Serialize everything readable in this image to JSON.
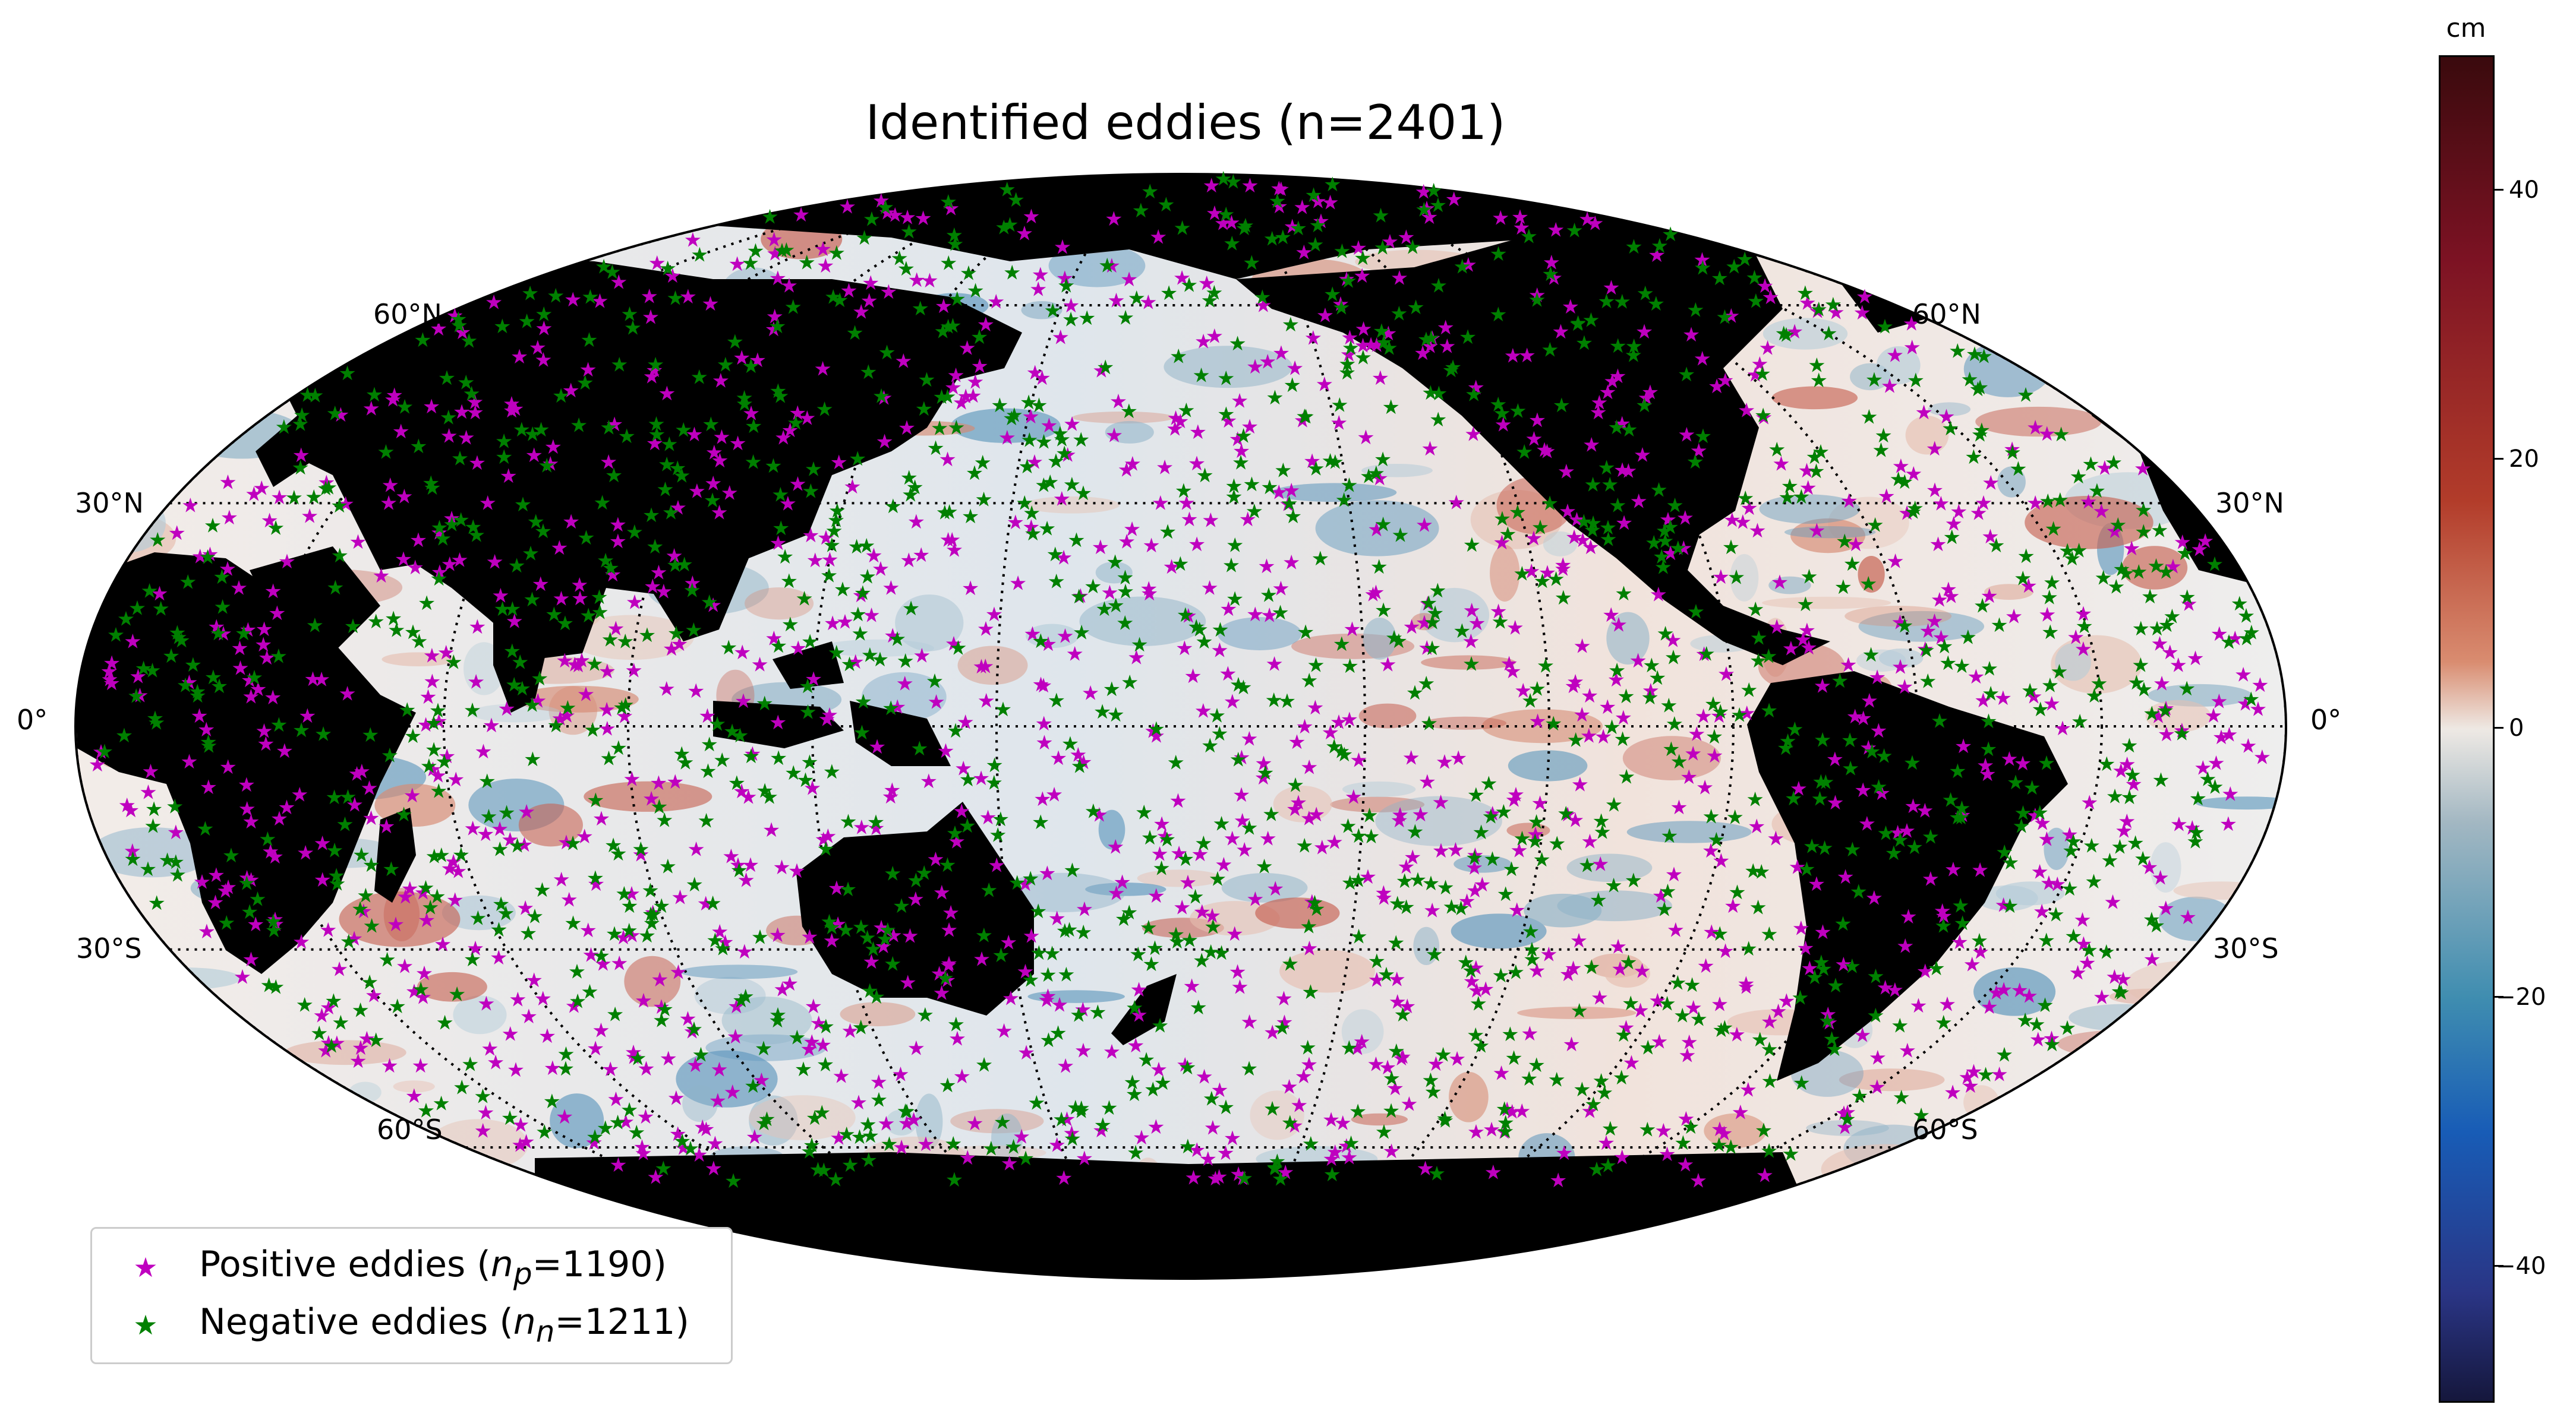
{
  "title": "Identified eddies (n=2401)",
  "map": {
    "projection": "Mollweide",
    "central_longitude": 180,
    "land_color": "#000000",
    "gridline_style": "dotted",
    "lat_labels_left": [
      "60°N",
      "30°N",
      "0°",
      "30°S",
      "60°S"
    ],
    "lat_labels_right": [
      "60°N",
      "30°N",
      "0°",
      "30°S",
      "60°S"
    ],
    "background_field": "sea surface height anomaly"
  },
  "legend": {
    "positive": {
      "label": "Positive eddies (",
      "sym": "n",
      "sub": "p",
      "value": "=1190)",
      "marker": "★",
      "color": "#bf00bf"
    },
    "negative": {
      "label": "Negative eddies (",
      "sym": "n",
      "sub": "n",
      "value": "=1211)",
      "marker": "★",
      "color": "#008000"
    }
  },
  "colorbar": {
    "unit": "cm",
    "ticks": [
      "40",
      "20",
      "0",
      "−20",
      "−40"
    ],
    "range": [
      -50,
      50
    ],
    "colormap": "balance"
  },
  "counts": {
    "total": 2401,
    "positive": 1190,
    "negative": 1211
  }
}
